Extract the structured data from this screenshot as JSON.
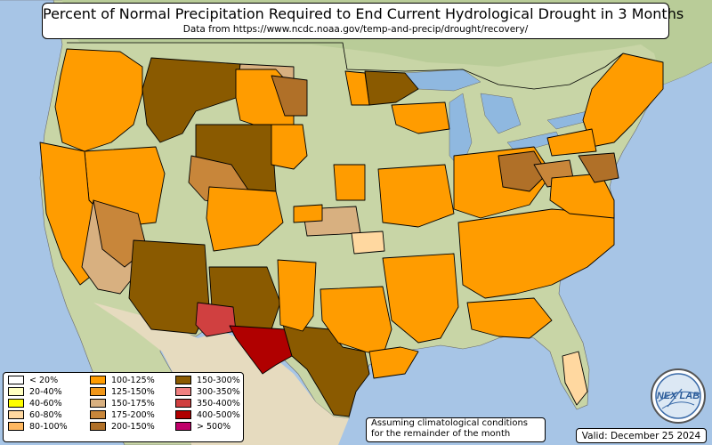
{
  "header": {
    "title": "Percent of Normal Precipitation Required to End Current Hydrological Drought in 3 Months",
    "subtitle": "Data from https://www.ncdc.noaa.gov/temp-and-precip/drought/recovery/"
  },
  "legend": {
    "items": [
      {
        "label": "< 20%",
        "color": "#ffffff"
      },
      {
        "label": "20-40%",
        "color": "#ffffc0"
      },
      {
        "label": "40-60%",
        "color": "#ffff00"
      },
      {
        "label": "60-80%",
        "color": "#ffd8a0"
      },
      {
        "label": "80-100%",
        "color": "#ffb860"
      },
      {
        "label": "100-125%",
        "color": "#ff9c00"
      },
      {
        "label": "125-150%",
        "color": "#f09618"
      },
      {
        "label": "150-175%",
        "color": "#d8b080"
      },
      {
        "label": "175-200%",
        "color": "#c8863a"
      },
      {
        "label": "200-150%",
        "color": "#b07028"
      },
      {
        "label": "150-300%",
        "color": "#8a5a00"
      },
      {
        "label": "300-350%",
        "color": "#f08080"
      },
      {
        "label": "350-400%",
        "color": "#d04040"
      },
      {
        "label": "400-500%",
        "color": "#b00000"
      },
      {
        "label": "> 500%",
        "color": "#c0006a"
      }
    ]
  },
  "footer": {
    "assumption_line1": "Assuming climatological conditions",
    "assumption_line2": "for the remainder of the month",
    "valid": "Valid: December 25 2024"
  },
  "logo": {
    "text": "NEX LAB",
    "icon": "nexlab-logo-icon"
  },
  "colors": {
    "ocean": "#a7c5e6",
    "land": "#c9d6a8",
    "desert": "#e8dcc0",
    "lake": "#8fb8e0"
  }
}
